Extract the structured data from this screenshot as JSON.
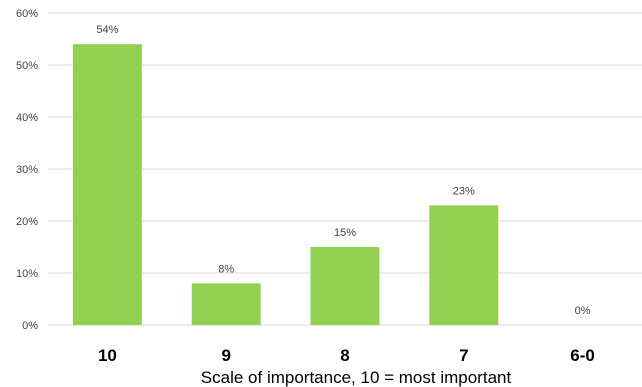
{
  "chart_data": {
    "type": "bar",
    "categories": [
      "10",
      "9",
      "8",
      "7",
      "6-0"
    ],
    "values": [
      54,
      8,
      15,
      23,
      0
    ],
    "data_labels": [
      "54%",
      "8%",
      "15%",
      "23%",
      "0%"
    ],
    "y_ticks": [
      0,
      10,
      20,
      30,
      40,
      50,
      60
    ],
    "y_tick_labels": [
      "0%",
      "10%",
      "20%",
      "30%",
      "40%",
      "50%",
      "60%"
    ],
    "ylim": [
      0,
      60
    ],
    "xlabel": "Scale of importance, 10 = most important",
    "ylabel": "",
    "title": "",
    "grid": "horizontal",
    "legend": "none",
    "colors": {
      "bar": "#92d050",
      "grid": "#d9d9d9"
    }
  }
}
